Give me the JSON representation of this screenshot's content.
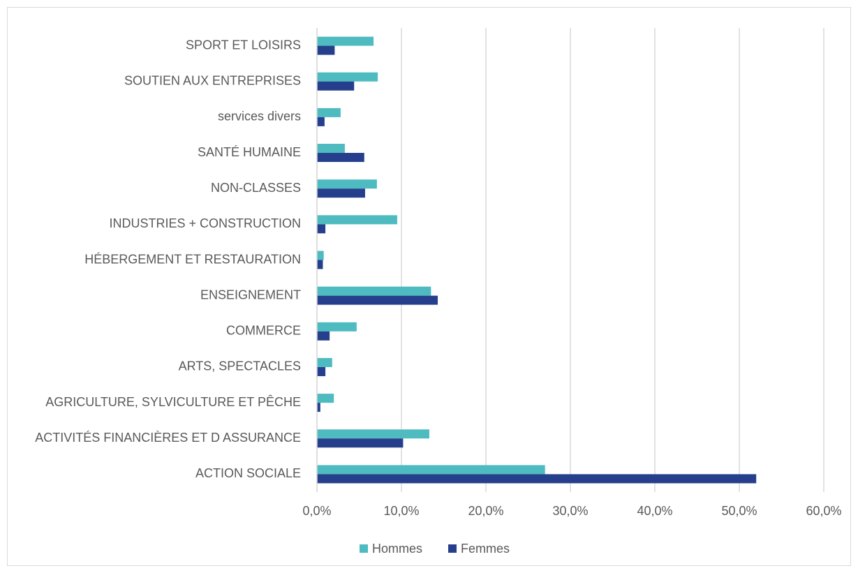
{
  "chart_data": {
    "type": "bar",
    "orientation": "horizontal",
    "categories": [
      "ACTION SOCIALE",
      "ACTIVITÉS FINANCIÈRES ET D ASSURANCE",
      "AGRICULTURE, SYLVICULTURE ET PÊCHE",
      "ARTS, SPECTACLES",
      "COMMERCE",
      "ENSEIGNEMENT",
      "HÉBERGEMENT ET RESTAURATION",
      "INDUSTRIES + CONSTRUCTION",
      "NON-CLASSES",
      "SANTÉ HUMAINE",
      "services divers",
      "SOUTIEN AUX ENTREPRISES",
      "SPORT ET LOISIRS"
    ],
    "series": [
      {
        "name": "Hommes",
        "color": "#4dbbc0",
        "values": [
          27.0,
          13.3,
          2.0,
          1.8,
          4.7,
          13.5,
          0.8,
          9.5,
          7.1,
          3.3,
          2.8,
          7.2,
          6.7
        ]
      },
      {
        "name": "Femmes",
        "color": "#263f8c",
        "values": [
          52.0,
          10.2,
          0.4,
          1.0,
          1.5,
          14.3,
          0.7,
          1.0,
          5.7,
          5.6,
          0.9,
          4.4,
          2.1
        ]
      }
    ],
    "xlim": [
      0,
      60
    ],
    "xticks": [
      {
        "value": 0,
        "label": "0,0%"
      },
      {
        "value": 10,
        "label": "10,0%"
      },
      {
        "value": 20,
        "label": "20,0%"
      },
      {
        "value": 30,
        "label": "30,0%"
      },
      {
        "value": 40,
        "label": "40,0%"
      },
      {
        "value": 50,
        "label": "50,0%"
      },
      {
        "value": 60,
        "label": "60,0%"
      }
    ],
    "grid": true,
    "legend": "bottom"
  }
}
